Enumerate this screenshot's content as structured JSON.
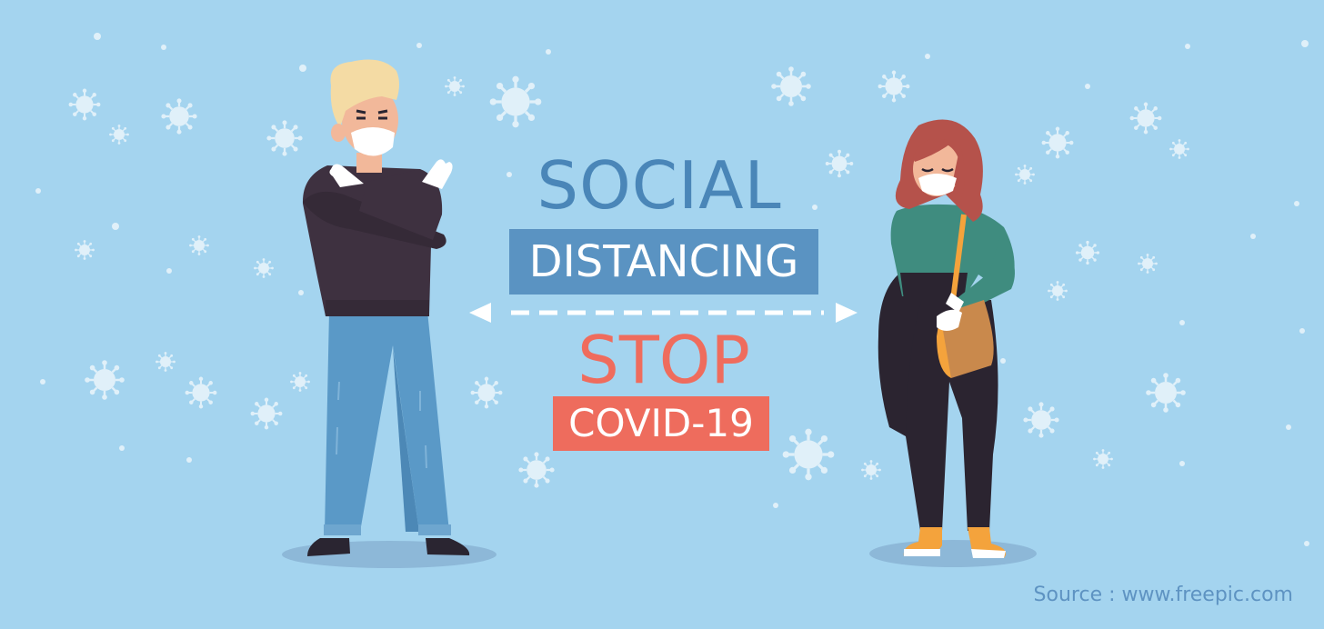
{
  "headline": {
    "line1": "SOCIAL",
    "line2": "DISTANCING",
    "line3": "STOP",
    "line4": "COVID-19"
  },
  "source": "Source : www.freepic.com",
  "colors": {
    "background": "#a4d4ef",
    "blue_text": "#4a86b8",
    "blue_banner": "#5a93c2",
    "red_text": "#ef6c5d",
    "red_banner": "#ee6c5d",
    "virus": "#ddeef8"
  },
  "icons": [
    "virus-icon",
    "double-arrow-icon"
  ]
}
